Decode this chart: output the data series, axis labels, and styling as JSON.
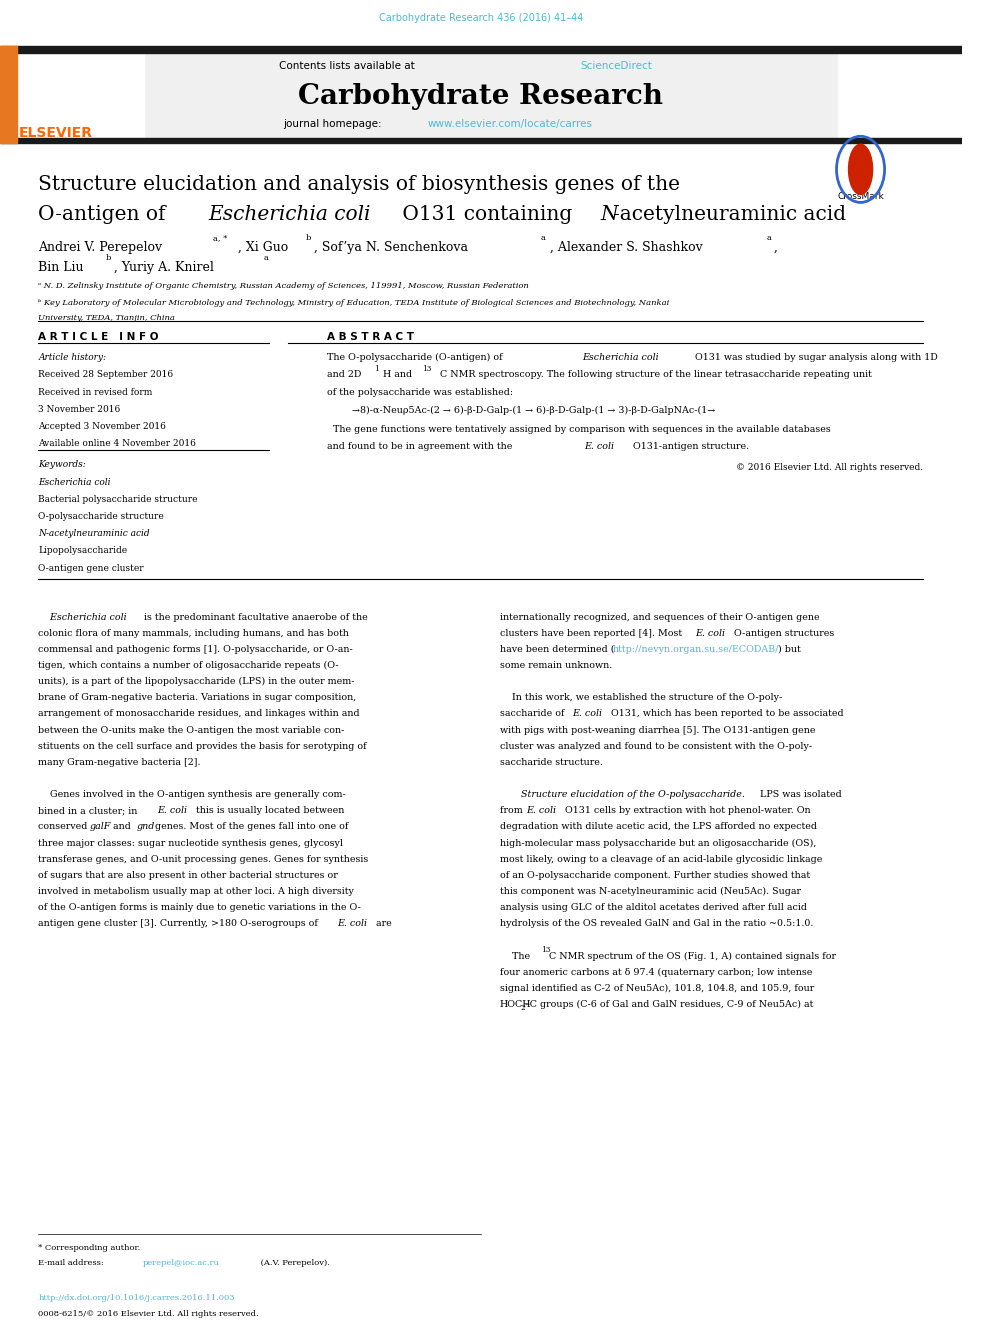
{
  "page_width": 9.92,
  "page_height": 13.23,
  "bg_color": "#ffffff",
  "top_journal_ref": "Carbohydrate Research 436 (2016) 41–44",
  "top_journal_ref_color": "#4db8d4",
  "header_bg": "#f0f0f0",
  "journal_name": "Carbohydrate Research",
  "journal_url": "www.elsevier.com/locate/carres",
  "journal_url_color": "#4db8d4",
  "elsevier_color": "#ff6600",
  "article_title_line1": "Structure elucidation and analysis of biosynthesis genes of the",
  "article_info_header": "A R T I C L E   I N F O",
  "abstract_header": "A B S T R A C T",
  "article_history_label": "Article history:",
  "received1": "Received 28 September 2016",
  "received2": "Received in revised form",
  "received3": "3 November 2016",
  "accepted": "Accepted 3 November 2016",
  "available": "Available online 4 November 2016",
  "keywords_label": "Keywords:",
  "keywords": [
    "Escherichia coli",
    "Bacterial polysaccharide structure",
    "O-polysaccharide structure",
    "N-acetylneuraminic acid",
    "Lipopolysaccharide",
    "O-antigen gene cluster"
  ],
  "abstract_structure": "  →8)-α-Neuρ5Ac-(2 → 6)-β-D-Galp-(1 → 6)-β-D-Galp-(1 → 3)-β-D-GalpNAc-(1→",
  "abstract_text4": "  The gene functions were tentatively assigned by comparison with sequences in the available databases",
  "copyright": "© 2016 Elsevier Ltd. All rights reserved.",
  "affil_a": "ᵃ N. D. Zelinsky Institute of Organic Chemistry, Russian Academy of Sciences, 119991, Moscow, Russian Federation",
  "affil_b": "ᵇ Key Laboratory of Molecular Microbiology and Technology, Ministry of Education, TEDA Institute of Biological Sciences and Biotechnology, Nankai",
  "affil_b2": "University, TEDA, Tianjin, China",
  "footer_doi": "http://dx.doi.org/10.1016/j.carres.2016.11.003",
  "footer_issn": "0008-6215/© 2016 Elsevier Ltd. All rights reserved.",
  "url_color": "#4db8d4",
  "thick_bar_color": "#1a1a1a",
  "orange_bar_color": "#e87722"
}
